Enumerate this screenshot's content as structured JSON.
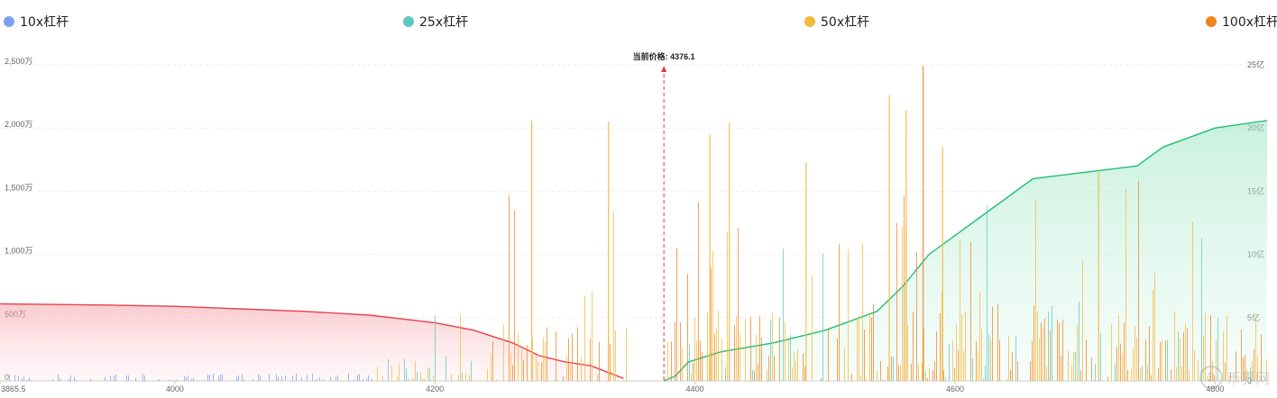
{
  "legend": [
    {
      "label": "10x杠杆",
      "color": "#7ea0f0"
    },
    {
      "label": "25x杠杆",
      "color": "#5cc8c0"
    },
    {
      "label": "50x杠杆",
      "color": "#f4b93a"
    },
    {
      "label": "100x杠杆",
      "color": "#f0831e"
    }
  ],
  "watermark": {
    "text": "币界网",
    "icon": "coin-logo-icon"
  },
  "chart_data": {
    "type": "bar",
    "title": "",
    "marker": {
      "label": "当前价格: 4376.1",
      "x": 4376.1,
      "color": "#e03c3c"
    },
    "x_axis": {
      "min": 3865.5,
      "max": 4840,
      "ticks": [
        3865.5,
        4000,
        4200,
        4400,
        4600,
        4800
      ]
    },
    "y_left": {
      "min": 0,
      "max": 2500,
      "unit": "万",
      "tick_labels": [
        "0",
        "500万",
        "1,000万",
        "1,500万",
        "2,000万",
        "2,500万"
      ]
    },
    "y_right": {
      "min": 0,
      "max": 25,
      "unit": "亿",
      "tick_labels": [
        "0",
        "5亿",
        "10亿",
        "15亿",
        "20亿",
        "25亿"
      ]
    },
    "grid": true,
    "legend_position": "top",
    "cumulative_series": [
      {
        "side": "long",
        "color": "#e8414b",
        "points": [
          [
            3865.5,
            6.1
          ],
          [
            3950,
            6.0
          ],
          [
            4000,
            5.9
          ],
          [
            4050,
            5.7
          ],
          [
            4100,
            5.5
          ],
          [
            4150,
            5.2
          ],
          [
            4200,
            4.6
          ],
          [
            4230,
            4.0
          ],
          [
            4260,
            3.0
          ],
          [
            4280,
            2.0
          ],
          [
            4300,
            1.5
          ],
          [
            4320,
            1.2
          ],
          [
            4345,
            0.2
          ]
        ]
      },
      {
        "side": "short",
        "color": "#20c070",
        "points": [
          [
            4376.1,
            0
          ],
          [
            4385,
            0.4
          ],
          [
            4395,
            1.5
          ],
          [
            4420,
            2.3
          ],
          [
            4460,
            3.0
          ],
          [
            4500,
            4.0
          ],
          [
            4540,
            5.5
          ],
          [
            4560,
            7.5
          ],
          [
            4580,
            10.0
          ],
          [
            4620,
            13.0
          ],
          [
            4660,
            16.0
          ],
          [
            4700,
            16.5
          ],
          [
            4740,
            17.0
          ],
          [
            4760,
            18.5
          ],
          [
            4800,
            20.0
          ],
          [
            4840,
            20.6
          ]
        ]
      }
    ],
    "spikes": [
      {
        "x": 4274,
        "value": 2060,
        "series": "50x杠杆"
      },
      {
        "x": 4333,
        "value": 2050,
        "series": "50x杠杆"
      },
      {
        "x": 4411,
        "value": 1950,
        "series": "50x杠杆"
      },
      {
        "x": 4426,
        "value": 2040,
        "series": "50x杠杆"
      },
      {
        "x": 4549,
        "value": 2260,
        "series": "50x杠杆"
      },
      {
        "x": 4575,
        "value": 2490,
        "series": "100x杠杆"
      },
      {
        "x": 4562,
        "value": 2140,
        "series": "50x杠杆"
      },
      {
        "x": 4590,
        "value": 1850,
        "series": "50x杠杆"
      },
      {
        "x": 4485,
        "value": 1730,
        "series": "50x杠杆"
      },
      {
        "x": 4710,
        "value": 1650,
        "series": "50x杠杆"
      }
    ]
  }
}
